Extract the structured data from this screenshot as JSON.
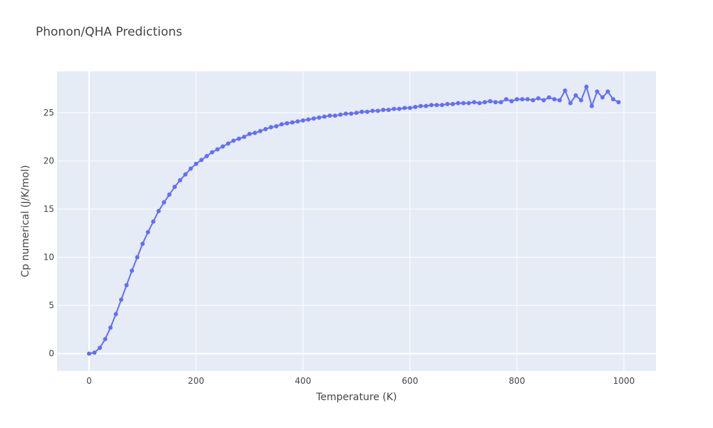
{
  "chart_data": {
    "type": "line",
    "title": "Phonon/QHA Predictions",
    "xlabel": "Temperature (K)",
    "ylabel": "Cp numerical (J/K/mol)",
    "xlim": [
      -60,
      1060
    ],
    "ylim": [
      -1.8,
      29.3
    ],
    "xticks": [
      0,
      200,
      400,
      600,
      800,
      1000
    ],
    "yticks": [
      0,
      5,
      10,
      15,
      20,
      25
    ],
    "grid": true,
    "line_color": "#636efa",
    "plot_bg": "#e5ecf6",
    "x": [
      0,
      10,
      20,
      30,
      40,
      50,
      60,
      70,
      80,
      90,
      100,
      110,
      120,
      130,
      140,
      150,
      160,
      170,
      180,
      190,
      200,
      210,
      220,
      230,
      240,
      250,
      260,
      270,
      280,
      290,
      300,
      310,
      320,
      330,
      340,
      350,
      360,
      370,
      380,
      390,
      400,
      410,
      420,
      430,
      440,
      450,
      460,
      470,
      480,
      490,
      500,
      510,
      520,
      530,
      540,
      550,
      560,
      570,
      580,
      590,
      600,
      610,
      620,
      630,
      640,
      650,
      660,
      670,
      680,
      690,
      700,
      710,
      720,
      730,
      740,
      750,
      760,
      770,
      780,
      790,
      800,
      810,
      820,
      830,
      840,
      850,
      860,
      870,
      880,
      890,
      900,
      910,
      920,
      930,
      940,
      950,
      960,
      970,
      980,
      990
    ],
    "y": [
      0.0,
      0.1,
      0.6,
      1.5,
      2.7,
      4.1,
      5.6,
      7.1,
      8.6,
      10.0,
      11.4,
      12.6,
      13.7,
      14.8,
      15.7,
      16.5,
      17.3,
      18.0,
      18.6,
      19.2,
      19.7,
      20.1,
      20.5,
      20.9,
      21.2,
      21.5,
      21.8,
      22.1,
      22.3,
      22.5,
      22.8,
      22.9,
      23.1,
      23.3,
      23.5,
      23.6,
      23.8,
      23.9,
      24.0,
      24.1,
      24.2,
      24.3,
      24.4,
      24.5,
      24.6,
      24.7,
      24.7,
      24.8,
      24.9,
      24.9,
      25.0,
      25.1,
      25.1,
      25.2,
      25.2,
      25.3,
      25.3,
      25.4,
      25.4,
      25.5,
      25.5,
      25.6,
      25.7,
      25.7,
      25.8,
      25.8,
      25.8,
      25.9,
      25.9,
      26.0,
      26.0,
      26.0,
      26.1,
      26.0,
      26.1,
      26.2,
      26.1,
      26.1,
      26.4,
      26.2,
      26.4,
      26.4,
      26.4,
      26.3,
      26.5,
      26.3,
      26.6,
      26.4,
      26.3,
      27.3,
      26.0,
      26.8,
      26.3,
      27.7,
      25.7,
      27.2,
      26.6,
      27.2,
      26.4,
      26.1
    ]
  }
}
